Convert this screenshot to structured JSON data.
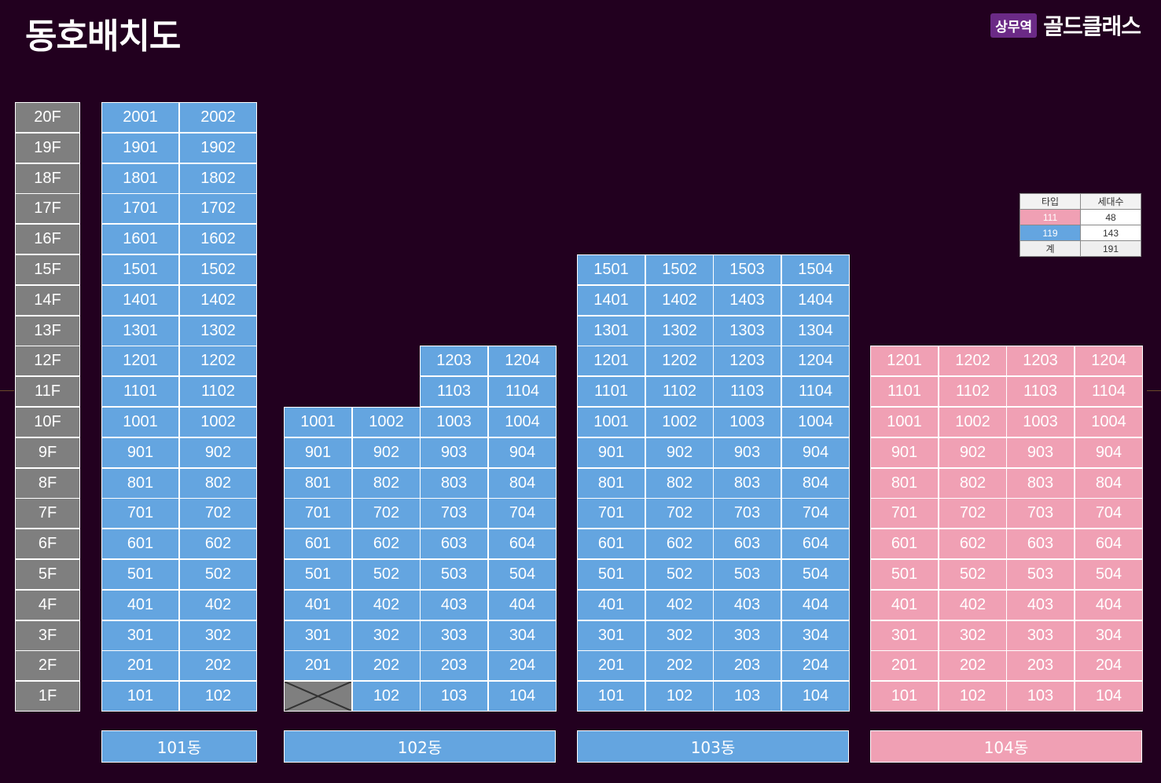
{
  "title": "동호배치도",
  "brand": {
    "badge": "상무역",
    "name": "골드클래스"
  },
  "colors": {
    "background": "#22001f",
    "floor": "#7f7f7f",
    "type_111": "#f0a0b4",
    "type_119": "#64a5e0"
  },
  "floors": [
    "20F",
    "19F",
    "18F",
    "17F",
    "16F",
    "15F",
    "14F",
    "13F",
    "12F",
    "11F",
    "10F",
    "9F",
    "8F",
    "7F",
    "6F",
    "5F",
    "4F",
    "3F",
    "2F",
    "1F"
  ],
  "buildings": [
    {
      "name": "101동",
      "type": "119",
      "rows": [
        [
          "2001",
          "2002"
        ],
        [
          "1901",
          "1902"
        ],
        [
          "1801",
          "1802"
        ],
        [
          "1701",
          "1702"
        ],
        [
          "1601",
          "1602"
        ],
        [
          "1501",
          "1502"
        ],
        [
          "1401",
          "1402"
        ],
        [
          "1301",
          "1302"
        ],
        [
          "1201",
          "1202"
        ],
        [
          "1101",
          "1102"
        ],
        [
          "1001",
          "1002"
        ],
        [
          "901",
          "902"
        ],
        [
          "801",
          "802"
        ],
        [
          "701",
          "702"
        ],
        [
          "601",
          "602"
        ],
        [
          "501",
          "502"
        ],
        [
          "401",
          "402"
        ],
        [
          "301",
          "302"
        ],
        [
          "201",
          "202"
        ],
        [
          "101",
          "102"
        ]
      ]
    },
    {
      "name": "102동",
      "type": "119",
      "rows": [
        [
          null,
          null,
          "1203",
          "1204"
        ],
        [
          null,
          null,
          "1103",
          "1104"
        ],
        [
          "1001",
          "1002",
          "1003",
          "1004"
        ],
        [
          "901",
          "902",
          "903",
          "904"
        ],
        [
          "801",
          "802",
          "803",
          "804"
        ],
        [
          "701",
          "702",
          "703",
          "704"
        ],
        [
          "601",
          "602",
          "603",
          "604"
        ],
        [
          "501",
          "502",
          "503",
          "504"
        ],
        [
          "401",
          "402",
          "403",
          "404"
        ],
        [
          "301",
          "302",
          "303",
          "304"
        ],
        [
          "201",
          "202",
          "203",
          "204"
        ],
        [
          "X",
          "102",
          "103",
          "104"
        ]
      ]
    },
    {
      "name": "103동",
      "type": "119",
      "rows": [
        [
          "1501",
          "1502",
          "1503",
          "1504"
        ],
        [
          "1401",
          "1402",
          "1403",
          "1404"
        ],
        [
          "1301",
          "1302",
          "1303",
          "1304"
        ],
        [
          "1201",
          "1202",
          "1203",
          "1204"
        ],
        [
          "1101",
          "1102",
          "1103",
          "1104"
        ],
        [
          "1001",
          "1002",
          "1003",
          "1004"
        ],
        [
          "901",
          "902",
          "903",
          "904"
        ],
        [
          "801",
          "802",
          "803",
          "804"
        ],
        [
          "701",
          "702",
          "703",
          "704"
        ],
        [
          "601",
          "602",
          "603",
          "604"
        ],
        [
          "501",
          "502",
          "503",
          "504"
        ],
        [
          "401",
          "402",
          "403",
          "404"
        ],
        [
          "301",
          "302",
          "303",
          "304"
        ],
        [
          "201",
          "202",
          "203",
          "204"
        ],
        [
          "101",
          "102",
          "103",
          "104"
        ]
      ]
    },
    {
      "name": "104동",
      "type": "111",
      "rows": [
        [
          "1201",
          "1202",
          "1203",
          "1204"
        ],
        [
          "1101",
          "1102",
          "1103",
          "1104"
        ],
        [
          "1001",
          "1002",
          "1003",
          "1004"
        ],
        [
          "901",
          "902",
          "903",
          "904"
        ],
        [
          "801",
          "802",
          "803",
          "804"
        ],
        [
          "701",
          "702",
          "703",
          "704"
        ],
        [
          "601",
          "602",
          "603",
          "604"
        ],
        [
          "501",
          "502",
          "503",
          "504"
        ],
        [
          "401",
          "402",
          "403",
          "404"
        ],
        [
          "301",
          "302",
          "303",
          "304"
        ],
        [
          "201",
          "202",
          "203",
          "204"
        ],
        [
          "101",
          "102",
          "103",
          "104"
        ]
      ]
    }
  ],
  "legend": {
    "headers": [
      "타입",
      "세대수"
    ],
    "rows": [
      {
        "type": "111",
        "count": "48"
      },
      {
        "type": "119",
        "count": "143"
      },
      {
        "type": "계",
        "count": "191"
      }
    ]
  }
}
